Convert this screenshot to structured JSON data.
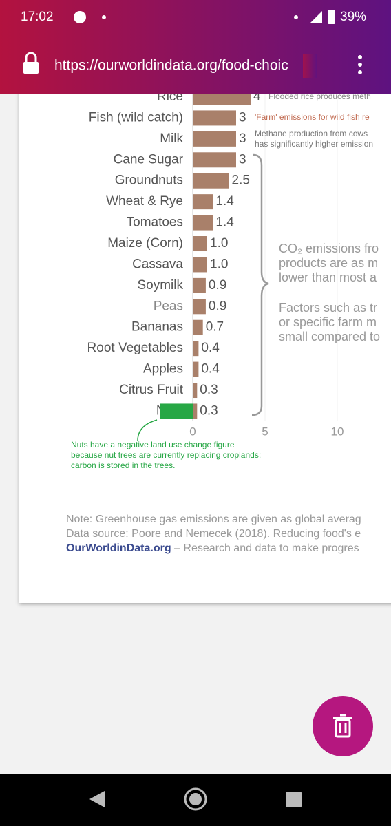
{
  "status_bar": {
    "time": "17:02",
    "battery": "39%"
  },
  "browser": {
    "url": "https://ourworldindata.org/food-choic"
  },
  "chart_data": {
    "type": "bar",
    "orientation": "horizontal",
    "categories": [
      "Rice",
      "Fish (wild catch)",
      "Milk",
      "Cane Sugar",
      "Groundnuts",
      "Wheat & Rye",
      "Tomatoes",
      "Maize (Corn)",
      "Cassava",
      "Soymilk",
      "Peas",
      "Bananas",
      "Root Vegetables",
      "Apples",
      "Citrus Fruit",
      "Nuts"
    ],
    "values": [
      4,
      3,
      3,
      3,
      2.5,
      1.4,
      1.4,
      1.0,
      1.0,
      0.9,
      0.9,
      0.7,
      0.4,
      0.4,
      0.3,
      0.3
    ],
    "value_labels": [
      "4",
      "3",
      "3",
      "3",
      "2.5",
      "1.4",
      "1.4",
      "1.0",
      "1.0",
      "0.9",
      "0.9",
      "0.7",
      "0.4",
      "0.4",
      "0.3",
      "0.3"
    ],
    "color": "#a9806a",
    "xlim": [
      -2.5,
      14
    ],
    "xticks": [
      0,
      5,
      10
    ],
    "annotations": {
      "rice": "Flooded rice produces meth",
      "fish": "'Farm' emissions for wild fish re",
      "milk": [
        "Methane production from cows",
        "has significantly higher emission"
      ],
      "plant": [
        "CO₂ emissions fro",
        "products are as m",
        "lower than most a"
      ],
      "factors": [
        "Factors such as tr",
        "or specific farm m",
        "small compared to"
      ],
      "nuts": [
        "Nuts have a negative land use change figure",
        "because nut trees are currently replacing croplands;",
        "carbon is stored in the trees."
      ]
    },
    "notes": {
      "note": "Note: Greenhouse gas emissions are given as global averag",
      "source": "Data source: Poore and Nemecek (2018). Reducing food's e",
      "site": "OurWorldinData.org",
      "tagline": " – Research and data to make progres"
    }
  }
}
